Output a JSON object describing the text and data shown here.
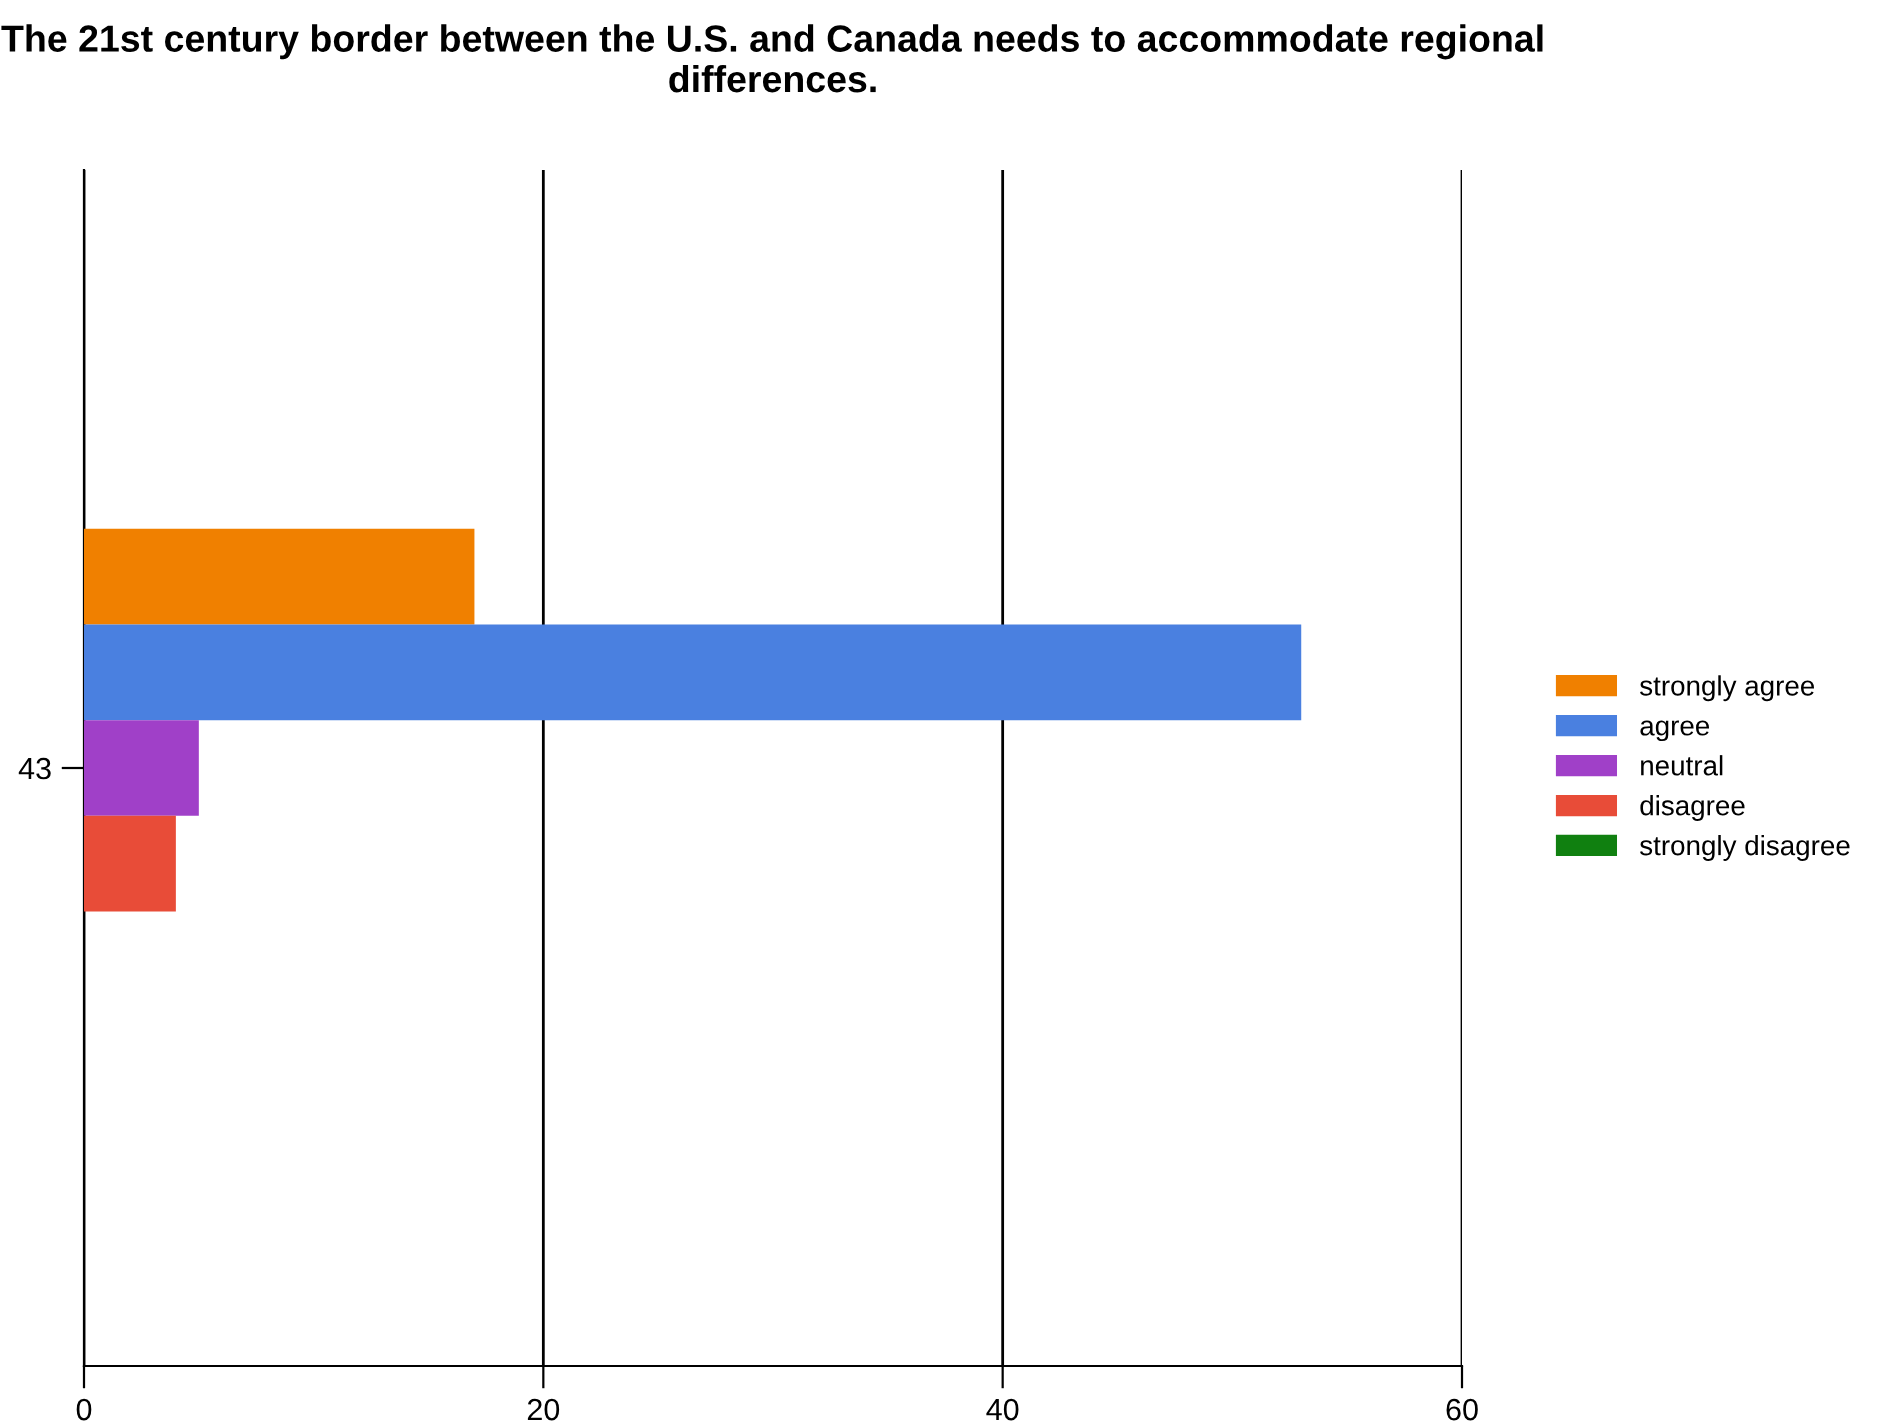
{
  "chart_data": {
    "type": "bar",
    "orientation": "horizontal",
    "title": "The 21st century border between the U.S. and Canada needs to accommodate regional differences.",
    "categories": [
      "43"
    ],
    "series": [
      {
        "name": "strongly agree",
        "color": "#f08000",
        "values": [
          17
        ]
      },
      {
        "name": "agree",
        "color": "#4a80e0",
        "values": [
          53
        ]
      },
      {
        "name": "neutral",
        "color": "#a040c8",
        "values": [
          5
        ]
      },
      {
        "name": "disagree",
        "color": "#e84c38",
        "values": [
          4
        ]
      },
      {
        "name": "strongly disagree",
        "color": "#108010",
        "values": [
          0
        ]
      }
    ],
    "xlim": [
      0,
      60
    ],
    "xticks": [
      0,
      20,
      40,
      60
    ],
    "grid": "x",
    "legend": "right"
  }
}
